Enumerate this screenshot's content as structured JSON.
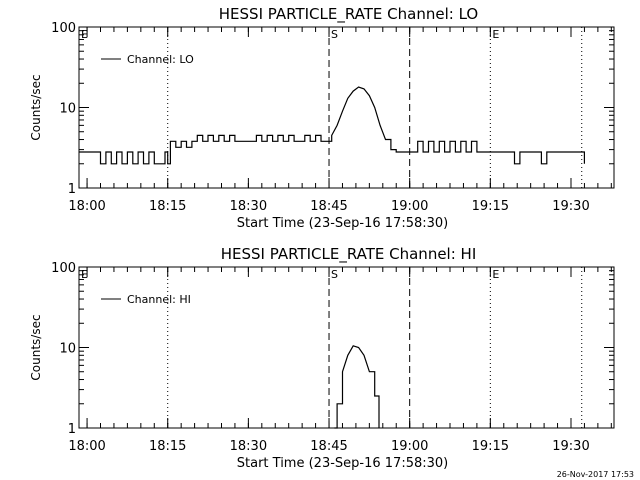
{
  "chart_data": [
    {
      "type": "line",
      "title": "HESSI PARTICLE_RATE Channel: LO",
      "xlabel": "Start Time (23-Sep-16 17:58:30)",
      "ylabel": "Counts/sec",
      "y_scale": "log",
      "ylim": [
        1,
        100
      ],
      "xlim_minutes": [
        0,
        99.5
      ],
      "x_tick_labels": [
        "18:00",
        "18:15",
        "18:30",
        "18:45",
        "19:00",
        "19:15",
        "19:30"
      ],
      "y_tick_labels": [
        "1",
        "10",
        "100"
      ],
      "legend": {
        "placement": "top-left",
        "entries": [
          "Channel: LO"
        ]
      },
      "vlines": [
        {
          "minute": 16.5,
          "style": "dotted",
          "label": ""
        },
        {
          "minute": 46.5,
          "style": "dashed",
          "label": "S"
        },
        {
          "minute": 61.5,
          "style": "dashed",
          "label": ""
        },
        {
          "minute": 76.5,
          "style": "dotted",
          "label": "E"
        },
        {
          "minute": 93.5,
          "style": "dotted",
          "label": ""
        }
      ],
      "corner_label": "E",
      "series": [
        {
          "x_minutes": [
            0,
            3,
            4,
            5,
            6,
            7,
            8,
            9,
            10,
            11,
            12,
            13,
            14,
            16,
            16.5,
            17,
            18,
            19,
            20,
            21,
            22,
            23,
            24,
            25,
            26,
            27,
            28,
            29,
            30,
            31,
            32,
            33,
            34,
            35,
            36,
            37,
            38,
            39,
            40,
            41,
            42,
            43,
            44,
            45,
            46,
            47,
            48,
            49,
            50,
            51,
            52,
            53,
            54,
            55,
            56,
            57,
            58,
            59,
            60,
            61,
            62,
            63,
            64,
            65,
            66,
            67,
            68,
            69,
            70,
            71,
            72,
            73,
            74,
            75,
            76,
            77,
            78,
            79,
            80,
            81,
            82,
            83,
            84,
            85,
            86,
            87,
            88,
            89,
            90,
            91,
            92,
            93,
            94
          ],
          "y": [
            2.8,
            2.8,
            2,
            2.8,
            2,
            2.8,
            2,
            2.8,
            2,
            2.8,
            2,
            2.8,
            2,
            2.8,
            2,
            3.8,
            3.2,
            3.8,
            3.2,
            3.8,
            4.5,
            3.8,
            4.5,
            3.8,
            4.5,
            3.8,
            4.5,
            3.8,
            3.8,
            3.8,
            3.8,
            4.5,
            3.8,
            4.5,
            3.8,
            4.5,
            3.8,
            4.5,
            3.8,
            3.8,
            4.5,
            3.8,
            4.5,
            3.8,
            3.8,
            4.5,
            6,
            9,
            13,
            16,
            18,
            17,
            14,
            10,
            6,
            4,
            3,
            2.8,
            2.8,
            2.8,
            2.8,
            3.8,
            2.8,
            3.8,
            2.8,
            3.8,
            2.8,
            3.8,
            2.8,
            3.8,
            2.8,
            3.8,
            2.8,
            2.8,
            2.8,
            2.8,
            2.8,
            2.8,
            2.8,
            2,
            2.8,
            2.8,
            2.8,
            2.8,
            2,
            2.8,
            2.8,
            2.8,
            2.8,
            2.8,
            2.8,
            2.8,
            2
          ]
        }
      ]
    },
    {
      "type": "line",
      "title": "HESSI PARTICLE_RATE Channel: HI",
      "xlabel": "Start Time (23-Sep-16 17:58:30)",
      "ylabel": "Counts/sec",
      "y_scale": "log",
      "ylim": [
        1,
        100
      ],
      "xlim_minutes": [
        0,
        99.5
      ],
      "x_tick_labels": [
        "18:00",
        "18:15",
        "18:30",
        "18:45",
        "19:00",
        "19:15",
        "19:30"
      ],
      "y_tick_labels": [
        "1",
        "10",
        "100"
      ],
      "legend": {
        "placement": "top-left",
        "entries": [
          "Channel: HI"
        ]
      },
      "vlines": [
        {
          "minute": 16.5,
          "style": "dotted",
          "label": ""
        },
        {
          "minute": 46.5,
          "style": "dashed",
          "label": "S"
        },
        {
          "minute": 61.5,
          "style": "dashed",
          "label": ""
        },
        {
          "minute": 76.5,
          "style": "dotted",
          "label": "E"
        },
        {
          "minute": 93.5,
          "style": "dotted",
          "label": ""
        }
      ],
      "corner_label": "E",
      "series": [
        {
          "x_minutes": [
            47.5,
            48,
            49,
            50,
            51,
            52,
            53,
            54,
            55,
            55.8
          ],
          "y": [
            1,
            2,
            5,
            8,
            10.5,
            10,
            8,
            5,
            2.5,
            1
          ]
        }
      ]
    }
  ],
  "footer": {
    "timestamp": "26-Nov-2017 17:53"
  }
}
